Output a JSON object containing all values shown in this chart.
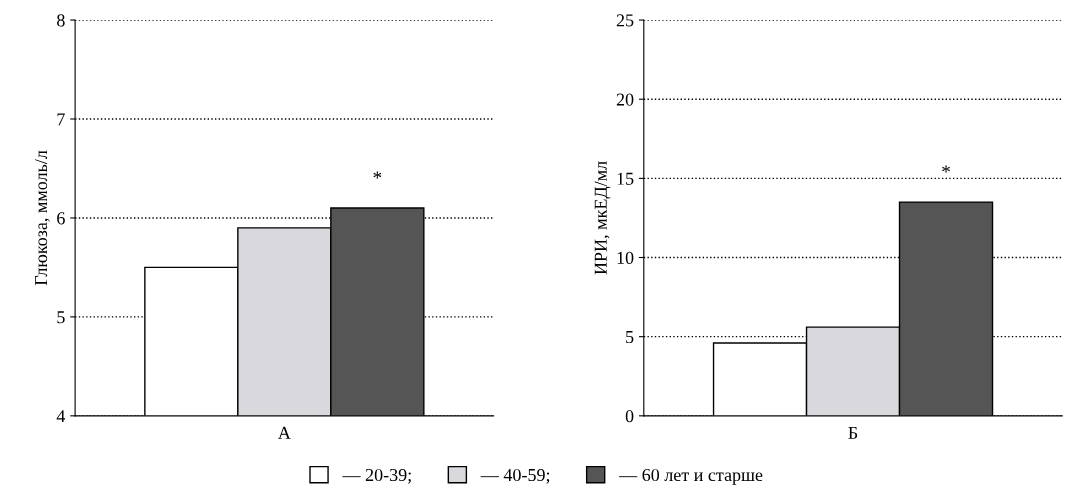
{
  "chart_data": [
    {
      "type": "bar",
      "categories": [
        null
      ],
      "xlabel": "А",
      "ylabel": "Глюкоза, ммоль/л",
      "ylim": [
        4,
        8
      ],
      "yticks": [
        4,
        5,
        6,
        7,
        8
      ],
      "grid": "y",
      "line_style": "dotted",
      "legend": "bottom",
      "series": [
        {
          "name": "— 20-39;",
          "color": "#ffffff",
          "values": [
            5.5
          ]
        },
        {
          "name": "— 40-59;",
          "color": "#d9d9dd",
          "values": [
            5.9
          ]
        },
        {
          "name": "— 60 лет и старше",
          "color": "#555555",
          "values": [
            6.1
          ]
        }
      ],
      "annotations": [
        "*"
      ]
    },
    {
      "type": "bar",
      "categories": [
        null
      ],
      "xlabel": "Б",
      "ylabel": "ИРИ, мкЕД/мл",
      "ylim": [
        0,
        25
      ],
      "yticks": [
        0,
        5,
        10,
        15,
        20,
        25
      ],
      "grid": "y",
      "line_style": "dotted",
      "series": [
        {
          "color": "#ffffff",
          "values": [
            4.6
          ]
        },
        {
          "color": "#d9d9dd",
          "values": [
            5.6
          ]
        },
        {
          "color": "#555555",
          "values": [
            13.5
          ]
        }
      ],
      "annotations": [
        "*"
      ]
    }
  ]
}
